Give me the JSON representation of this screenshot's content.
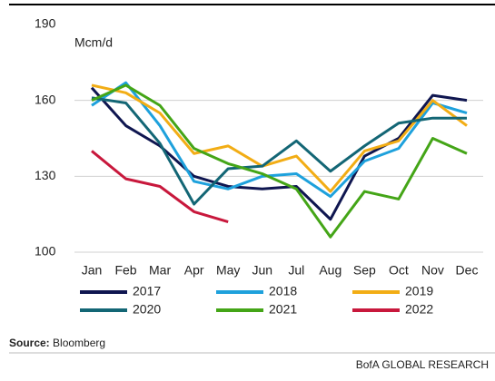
{
  "chart_data": {
    "type": "line",
    "y_label": "Mcm/d",
    "categories": [
      "Jan",
      "Feb",
      "Mar",
      "Apr",
      "May",
      "Jun",
      "Jul",
      "Aug",
      "Sep",
      "Oct",
      "Nov",
      "Dec"
    ],
    "series": [
      {
        "name": "2017",
        "color": "#0f1650",
        "values": [
          165,
          150,
          142,
          130,
          126,
          125,
          126,
          113,
          138,
          145,
          162,
          160
        ]
      },
      {
        "name": "2018",
        "color": "#1ea1dc",
        "values": [
          158,
          167,
          150,
          128,
          125,
          130,
          131,
          122,
          136,
          141,
          159,
          155
        ]
      },
      {
        "name": "2019",
        "color": "#f2ad15",
        "values": [
          166,
          163,
          155,
          139,
          142,
          134,
          138,
          124,
          140,
          144,
          160,
          150
        ]
      },
      {
        "name": "2020",
        "color": "#136675",
        "values": [
          161,
          159,
          143,
          119,
          133,
          134,
          144,
          132,
          142,
          151,
          153,
          153
        ]
      },
      {
        "name": "2021",
        "color": "#44a517",
        "values": [
          160,
          166,
          158,
          141,
          135,
          131,
          125,
          106,
          124,
          121,
          145,
          139
        ]
      },
      {
        "name": "2022",
        "color": "#c8183c",
        "values": [
          140,
          129,
          126,
          116,
          112,
          null,
          null,
          null,
          null,
          null,
          null,
          null
        ]
      }
    ],
    "ylim": [
      100,
      190
    ],
    "yticks": [
      100,
      130,
      160,
      190
    ],
    "grid": true,
    "source_label": "Source:",
    "source": "Bloomberg",
    "credit": "BofA GLOBAL RESEARCH"
  }
}
